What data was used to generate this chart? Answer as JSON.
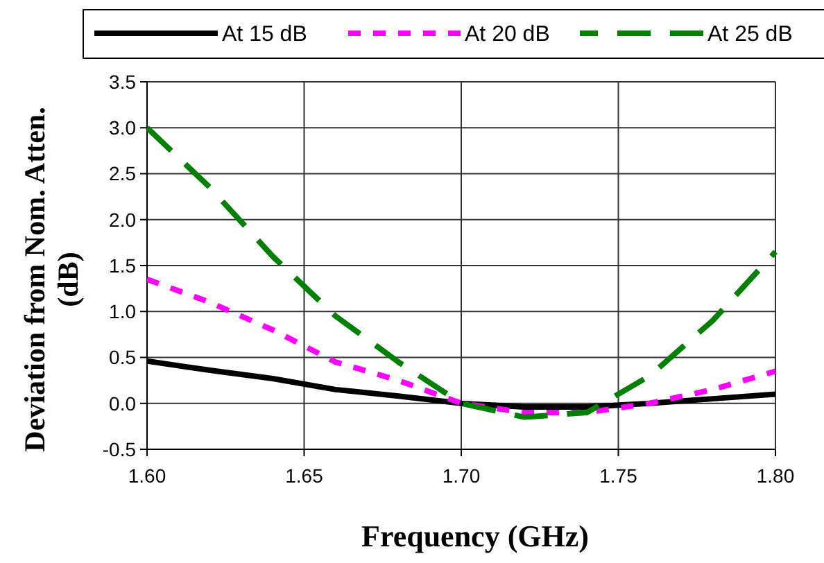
{
  "chart_data": {
    "type": "line",
    "xlabel": "Frequency (GHz)",
    "ylabel": "Deviation from Nom. Atten. (dB)",
    "x": [
      1.6,
      1.62,
      1.64,
      1.66,
      1.68,
      1.7,
      1.72,
      1.74,
      1.76,
      1.78,
      1.8
    ],
    "series": [
      {
        "name": "At 15 dB",
        "color": "#000000",
        "line_style": "solid",
        "values": [
          0.46,
          0.36,
          0.27,
          0.15,
          0.08,
          0.0,
          -0.04,
          -0.04,
          0.0,
          0.05,
          0.1
        ]
      },
      {
        "name": "At 20 dB",
        "color": "#ff00ff",
        "line_style": "dotted",
        "values": [
          1.35,
          1.1,
          0.8,
          0.45,
          0.25,
          0.0,
          -0.1,
          -0.1,
          0.0,
          0.15,
          0.35
        ]
      },
      {
        "name": "At 25 dB",
        "color": "#008000",
        "line_style": "dashed",
        "values": [
          3.0,
          2.35,
          1.6,
          0.95,
          0.45,
          0.0,
          -0.15,
          -0.1,
          0.3,
          0.9,
          1.65
        ]
      }
    ],
    "xlim": [
      1.6,
      1.8
    ],
    "xticks": [
      {
        "value": 1.6,
        "label": "1.60"
      },
      {
        "value": 1.65,
        "label": "1.65"
      },
      {
        "value": 1.7,
        "label": "1.70"
      },
      {
        "value": 1.75,
        "label": "1.75"
      },
      {
        "value": 1.8,
        "label": "1.80"
      }
    ],
    "ylim": [
      -0.5,
      3.5
    ],
    "yticks": [
      {
        "value": -0.5,
        "label": "-0.5"
      },
      {
        "value": 0,
        "label": "0.0"
      },
      {
        "value": 0.5,
        "label": "0.5"
      },
      {
        "value": 1,
        "label": "1.0"
      },
      {
        "value": 1.5,
        "label": "1.5"
      },
      {
        "value": 2,
        "label": "2.0"
      },
      {
        "value": 2.5,
        "label": "2.5"
      },
      {
        "value": 3,
        "label": "3.0"
      },
      {
        "value": 3.5,
        "label": "3.5"
      }
    ],
    "grid": true,
    "legend": "top",
    "marker": "none"
  }
}
